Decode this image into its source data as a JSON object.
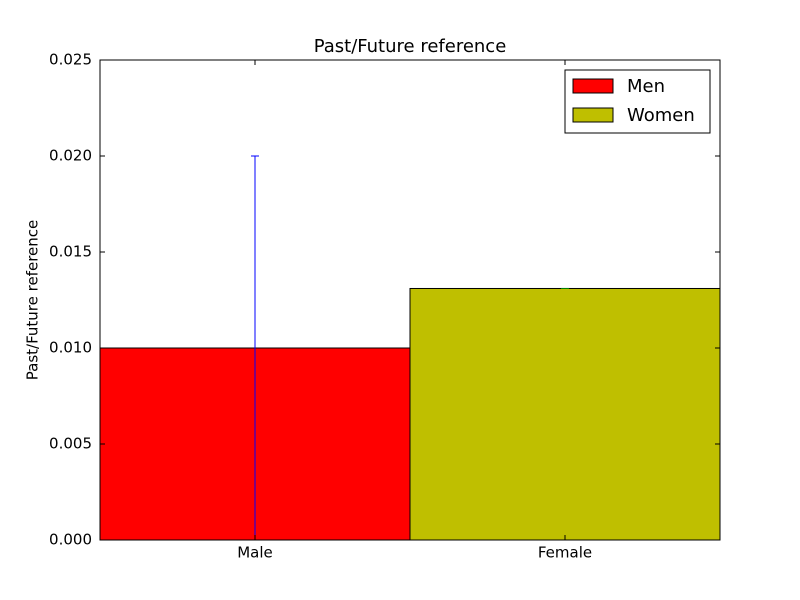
{
  "chart_data": {
    "type": "bar",
    "title": "Past/Future reference",
    "ylabel": "Past/Future reference",
    "categories": [
      "Male",
      "Female"
    ],
    "series": [
      {
        "name": "Men",
        "color": "#ff0000",
        "values": [
          0.01,
          null
        ],
        "errors": [
          0.01,
          null
        ],
        "error_color": "#0000ff"
      },
      {
        "name": "Women",
        "color": "#bfbf00",
        "values": [
          null,
          0.0131
        ],
        "errors": [
          null,
          0
        ],
        "error_color": "#008000"
      }
    ],
    "ylim": [
      0,
      0.025
    ],
    "yticks": [
      {
        "value": 0,
        "label": "0.000"
      },
      {
        "value": 0.005,
        "label": "0.005"
      },
      {
        "value": 0.01,
        "label": "0.010"
      },
      {
        "value": 0.015,
        "label": "0.015"
      },
      {
        "value": 0.02,
        "label": "0.020"
      },
      {
        "value": 0.025,
        "label": "0.025"
      }
    ],
    "grid": false,
    "legend": "upper right"
  }
}
